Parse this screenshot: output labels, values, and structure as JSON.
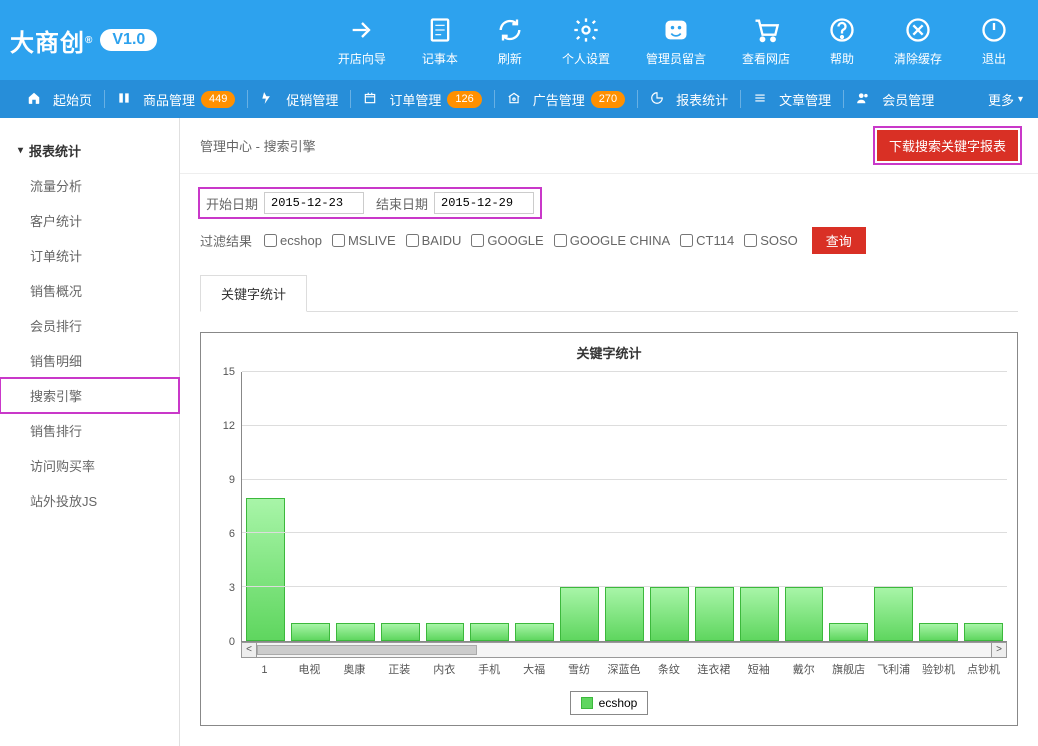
{
  "header": {
    "logo_text": "大商创",
    "version": "V1.0",
    "actions": [
      {
        "label": "开店向导",
        "icon": "guide"
      },
      {
        "label": "记事本",
        "icon": "notepad"
      },
      {
        "label": "刷新",
        "icon": "refresh"
      },
      {
        "label": "个人设置",
        "icon": "settings"
      },
      {
        "label": "管理员留言",
        "icon": "message"
      },
      {
        "label": "查看网店",
        "icon": "shop"
      },
      {
        "label": "帮助",
        "icon": "help"
      },
      {
        "label": "清除缓存",
        "icon": "clear"
      },
      {
        "label": "退出",
        "icon": "logout"
      }
    ]
  },
  "nav": {
    "items": [
      {
        "label": "起始页",
        "badge": null
      },
      {
        "label": "商品管理",
        "badge": "449"
      },
      {
        "label": "促销管理",
        "badge": null
      },
      {
        "label": "订单管理",
        "badge": "126"
      },
      {
        "label": "广告管理",
        "badge": "270"
      },
      {
        "label": "报表统计",
        "badge": null
      },
      {
        "label": "文章管理",
        "badge": null
      },
      {
        "label": "会员管理",
        "badge": null
      }
    ],
    "more_label": "更多"
  },
  "sidebar": {
    "title": "报表统计",
    "items": [
      {
        "label": "流量分析",
        "active": false
      },
      {
        "label": "客户统计",
        "active": false
      },
      {
        "label": "订单统计",
        "active": false
      },
      {
        "label": "销售概况",
        "active": false
      },
      {
        "label": "会员排行",
        "active": false
      },
      {
        "label": "销售明细",
        "active": false
      },
      {
        "label": "搜索引擎",
        "active": true
      },
      {
        "label": "销售排行",
        "active": false
      },
      {
        "label": "访问购买率",
        "active": false
      },
      {
        "label": "站外投放JS",
        "active": false
      }
    ]
  },
  "breadcrumb": {
    "center_label": "管理中心",
    "sep": " - ",
    "page_label": "搜索引擎",
    "download_btn": "下载搜索关键字报表"
  },
  "filters": {
    "start_label": "开始日期",
    "start_value": "2015-12-23",
    "end_label": "结束日期",
    "end_value": "2015-12-29",
    "filter_label": "过滤结果",
    "options": [
      "ecshop",
      "MSLIVE",
      "BAIDU",
      "GOOGLE",
      "GOOGLE CHINA",
      "CT114",
      "SOSO"
    ],
    "query_btn": "查询"
  },
  "tab": {
    "label": "关键字统计"
  },
  "chart": {
    "type": "bar",
    "title": "关键字统计",
    "ylim": [
      0,
      15
    ],
    "yticks": [
      0,
      3,
      6,
      9,
      12,
      15
    ],
    "categories": [
      "1",
      "电视",
      "奥康",
      "正装",
      "内衣",
      "手机",
      "大福",
      "雪纺",
      "深蓝色",
      "条纹",
      "连衣裙",
      "短袖",
      "戴尔",
      "旗舰店",
      "飞利浦",
      "验钞机",
      "点钞机"
    ],
    "values": [
      8,
      1,
      1,
      1,
      1,
      1,
      1,
      3,
      3,
      3,
      3,
      3,
      3,
      1,
      3,
      1,
      1
    ],
    "bar_color_top": "#a8f5a8",
    "bar_color_bottom": "#5fd65f",
    "bar_border": "#3cb83c",
    "grid_color": "#dddddd",
    "axis_color": "#888888",
    "background": "#ffffff",
    "legend_label": "ecshop"
  },
  "colors": {
    "header_bg": "#2da2ee",
    "nav_bg": "#278ed9",
    "badge_bg": "#ff9000",
    "danger_btn": "#d93025",
    "highlight": "#c938c9"
  }
}
